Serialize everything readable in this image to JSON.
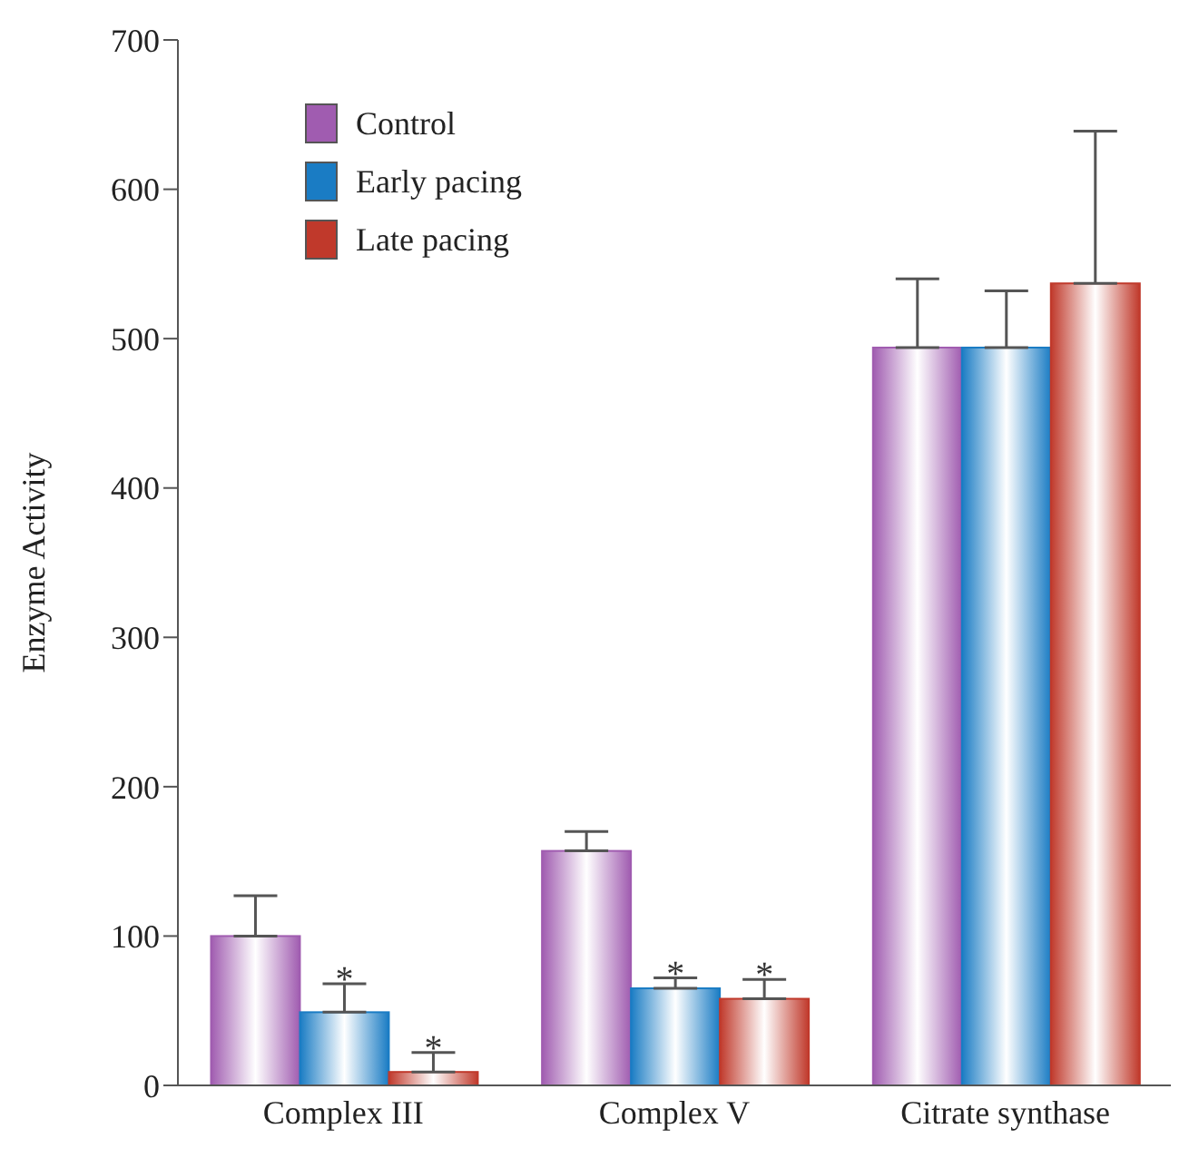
{
  "chart_data": {
    "type": "bar",
    "ylabel": "Enzyme Activity",
    "categories": [
      "Complex III",
      "Complex V",
      "Citrate synthase"
    ],
    "series": [
      {
        "name": "Control",
        "color": "#a05cb0",
        "values": [
          100,
          157,
          494
        ],
        "errors": [
          [
            100,
            127
          ],
          [
            157,
            170
          ],
          [
            494,
            540
          ]
        ]
      },
      {
        "name": "Early pacing",
        "color": "#1a7cc4",
        "values": [
          49,
          65,
          494
        ],
        "errors": [
          [
            49,
            68
          ],
          [
            65,
            72
          ],
          [
            494,
            532
          ]
        ],
        "value_labels": [
          "*",
          "*",
          null
        ]
      },
      {
        "name": "Late pacing",
        "color": "#c0392b",
        "values": [
          9,
          58,
          537
        ],
        "errors": [
          [
            9,
            22
          ],
          [
            58,
            71
          ],
          [
            537,
            639
          ]
        ],
        "value_labels": [
          "*",
          "*",
          null
        ]
      }
    ],
    "ylim": [
      0,
      700
    ],
    "yticks": [
      0,
      100,
      200,
      300,
      400,
      500,
      600,
      700
    ],
    "legend": "top left"
  }
}
